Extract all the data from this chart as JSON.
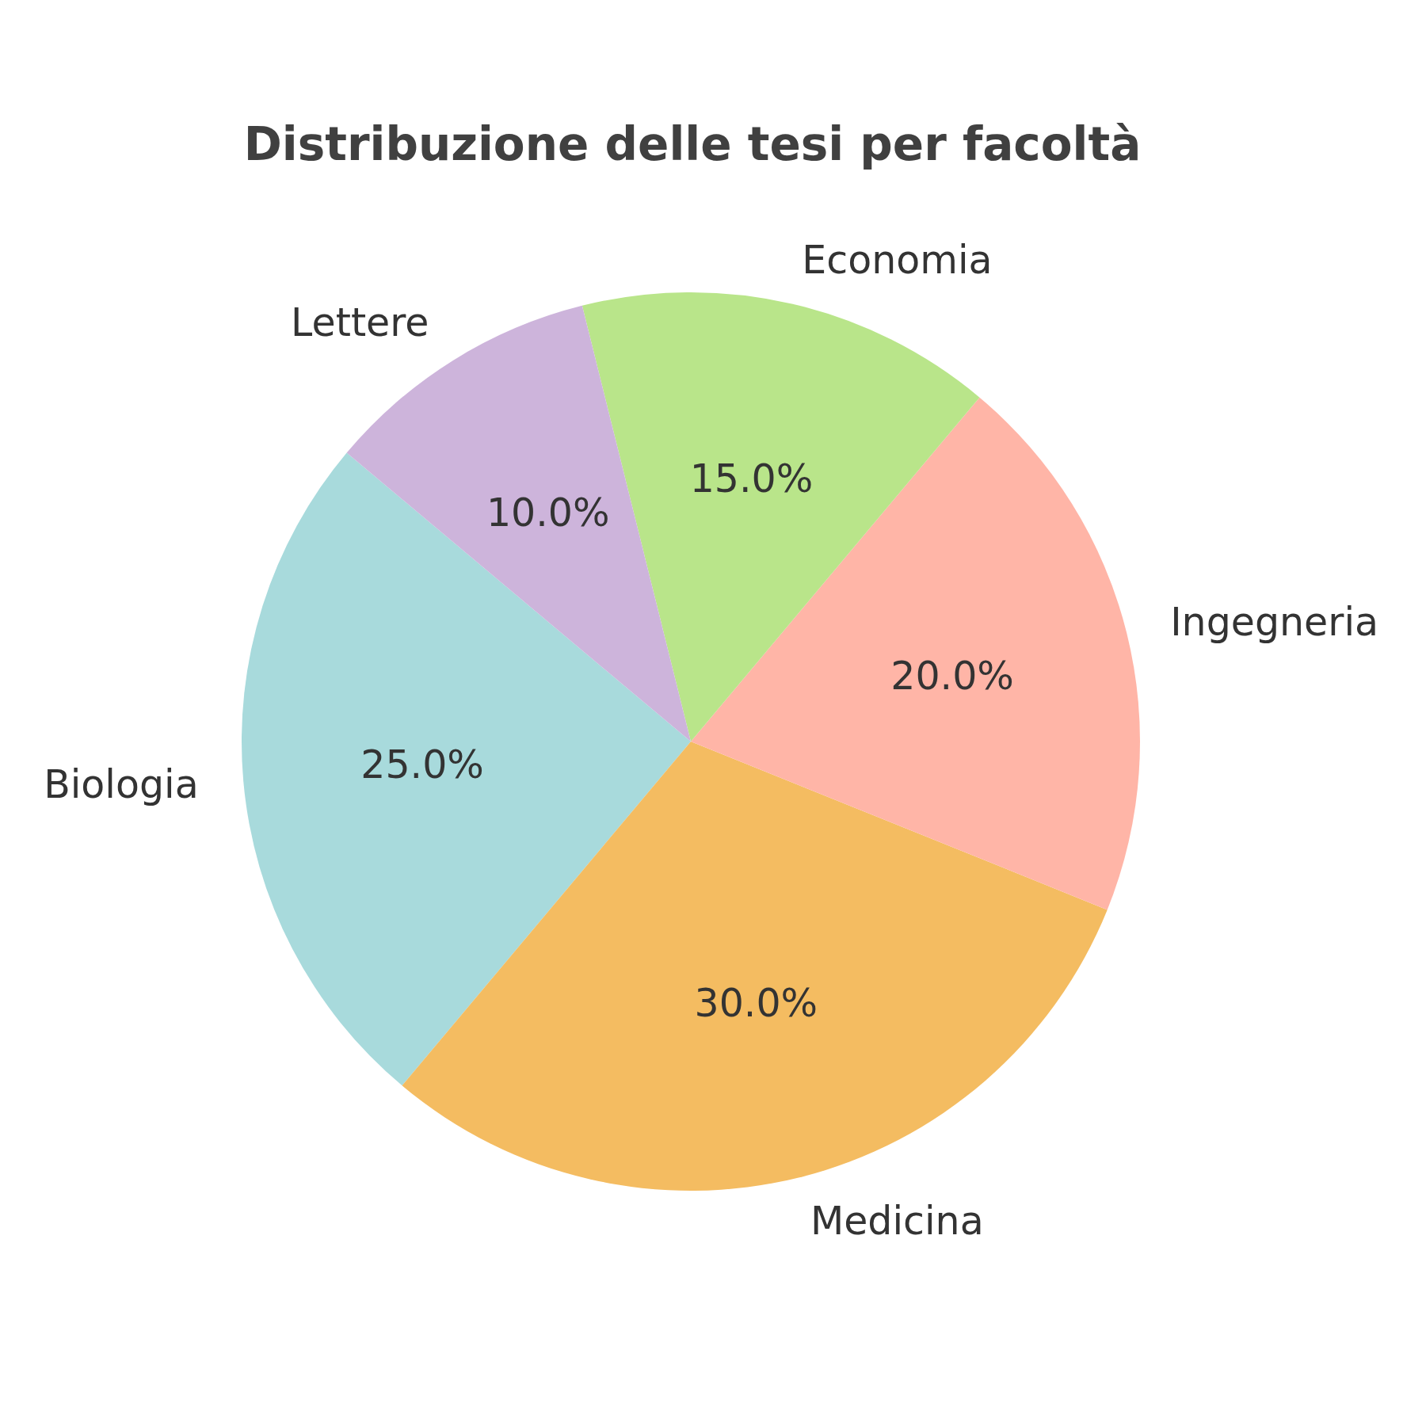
{
  "chart_data": {
    "type": "pie",
    "title": "Distribuzione delle tesi per facoltà",
    "categories": [
      "Biologia",
      "Medicina",
      "Ingegneria",
      "Economia",
      "Lettere"
    ],
    "values": [
      25,
      30,
      20,
      15,
      10
    ],
    "colors": [
      "#a8dadc",
      "#f4bc61",
      "#ffb5a7",
      "#b9e58a",
      "#cdb4db"
    ],
    "value_labels": [
      "25.0%",
      "30.0%",
      "20.0%",
      "15.0%",
      "10.0%"
    ]
  }
}
